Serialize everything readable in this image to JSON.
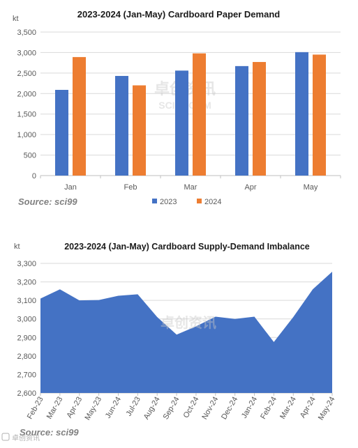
{
  "charts": {
    "bar": {
      "unit": "kt",
      "source": "Source: sci99",
      "watermark_cn": "卓创资讯",
      "watermark_en": "SCI99.COM"
    },
    "area": {
      "unit": "kt",
      "source": "Source: sci99",
      "watermark_cn": "卓创资讯"
    }
  },
  "footer": {
    "logo_text": "卓创资讯"
  },
  "colors": {
    "series2023": "#4472c4",
    "series2024": "#ed7d31",
    "area": "#4472c4",
    "grid": "#d9d9d9"
  },
  "chart_data": [
    {
      "type": "bar",
      "title": "2023-2024 (Jan-May) Cardboard Paper Demand",
      "ylabel": "kt",
      "categories": [
        "Jan",
        "Feb",
        "Mar",
        "Apr",
        "May"
      ],
      "series": [
        {
          "name": "2023",
          "values": [
            2090,
            2430,
            2560,
            2670,
            3010
          ]
        },
        {
          "name": "2024",
          "values": [
            2890,
            2200,
            2980,
            2770,
            2950
          ]
        }
      ],
      "ylim": [
        0,
        3500
      ],
      "yticks": [
        "0",
        "500",
        "1,000",
        "1,500",
        "2,000",
        "2,500",
        "3,000",
        "3,500"
      ],
      "grid": true,
      "legend": "bottom"
    },
    {
      "type": "area",
      "title": "2023-2024 (Jan-May) Cardboard Supply-Demand Imbalance",
      "ylabel": "kt",
      "x": [
        "Feb-23",
        "Mar-23",
        "Apr-23",
        "May-23",
        "Jun-24",
        "Jul-23",
        "Aug-24",
        "Sep-24",
        "Oct-24",
        "Nov-24",
        "Dec-24",
        "Jan-24",
        "Feb-24",
        "Mar-24",
        "Apr-24",
        "May-24"
      ],
      "values": [
        3110,
        3160,
        3100,
        3102,
        3125,
        3133,
        3010,
        2915,
        2960,
        3012,
        3000,
        3012,
        2875,
        3010,
        3160,
        3255
      ],
      "ylim": [
        2600,
        3300
      ],
      "yticks": [
        "2,600",
        "2,700",
        "2,800",
        "2,900",
        "3,000",
        "3,100",
        "3,200",
        "3,300"
      ],
      "grid": true
    }
  ]
}
